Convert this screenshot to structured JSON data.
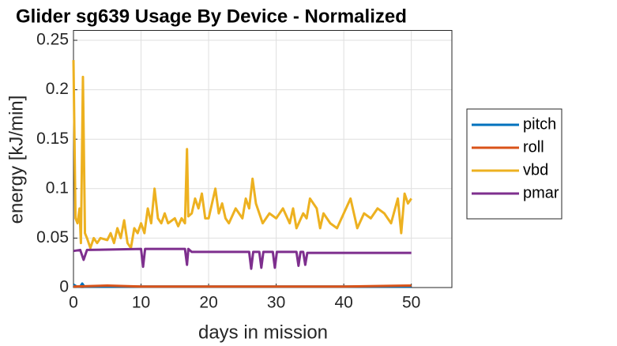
{
  "chart_data": {
    "type": "line",
    "title": "Glider sg639 Usage By Device - Normalized",
    "x_label": "days in mission",
    "y_label": "energy [kJ/min]",
    "xlim": [
      0,
      56
    ],
    "xticks": [
      0,
      10,
      20,
      30,
      40,
      50
    ],
    "ylim": [
      0,
      0.26
    ],
    "yticks": [
      0,
      0.05,
      0.1,
      0.15,
      0.2,
      0.25
    ],
    "grid": true,
    "legend": "outside-right",
    "series": [
      {
        "name": "pitch",
        "color": "#0072BD",
        "x": [
          0,
          0.5,
          1,
          1.3,
          1.6,
          50
        ],
        "values": [
          0.003,
          0.001,
          0.001,
          0.004,
          0.001,
          0.001
        ]
      },
      {
        "name": "roll",
        "color": "#D95319",
        "x": [
          0,
          5,
          10,
          20,
          30,
          40,
          50
        ],
        "values": [
          0.001,
          0.002,
          0.001,
          0.001,
          0.001,
          0.001,
          0.002
        ]
      },
      {
        "name": "vbd",
        "color": "#EDB120",
        "x": [
          0,
          0.3,
          0.6,
          0.9,
          1.1,
          1.4,
          1.7,
          2,
          2.5,
          3,
          3.5,
          4,
          5,
          5.5,
          6,
          6.5,
          7,
          7.5,
          8,
          8.5,
          9,
          9.5,
          10,
          10.5,
          11,
          11.5,
          12,
          12.5,
          13,
          13.5,
          14,
          15,
          15.5,
          16,
          16.5,
          16.8,
          17,
          17.5,
          18,
          18.5,
          19,
          19.5,
          20,
          21,
          21.5,
          22,
          22.5,
          23,
          24,
          25,
          25.5,
          26,
          26.5,
          27,
          27.5,
          28,
          29,
          30,
          31,
          32,
          32.5,
          33,
          34,
          34.5,
          35,
          36,
          36.5,
          37,
          38,
          39,
          40,
          41,
          42,
          43,
          44,
          45,
          46,
          47,
          48,
          48.5,
          49,
          49.5,
          50
        ],
        "values": [
          0.23,
          0.07,
          0.065,
          0.08,
          0.045,
          0.213,
          0.055,
          0.05,
          0.04,
          0.05,
          0.045,
          0.05,
          0.048,
          0.055,
          0.045,
          0.06,
          0.05,
          0.068,
          0.045,
          0.04,
          0.06,
          0.055,
          0.065,
          0.055,
          0.08,
          0.065,
          0.1,
          0.07,
          0.065,
          0.075,
          0.065,
          0.07,
          0.062,
          0.07,
          0.065,
          0.14,
          0.072,
          0.075,
          0.09,
          0.08,
          0.095,
          0.07,
          0.07,
          0.1,
          0.075,
          0.085,
          0.07,
          0.065,
          0.08,
          0.07,
          0.09,
          0.08,
          0.11,
          0.085,
          0.075,
          0.065,
          0.075,
          0.07,
          0.08,
          0.065,
          0.08,
          0.06,
          0.075,
          0.07,
          0.09,
          0.08,
          0.06,
          0.075,
          0.065,
          0.06,
          0.075,
          0.09,
          0.06,
          0.075,
          0.07,
          0.08,
          0.075,
          0.065,
          0.09,
          0.055,
          0.095,
          0.085,
          0.09
        ]
      },
      {
        "name": "pmar",
        "color": "#7E2F8E",
        "x": [
          0,
          1,
          1.5,
          2,
          10,
          10.3,
          10.6,
          16.5,
          16.8,
          17,
          17.5,
          26,
          26.3,
          26.6,
          27.5,
          27.8,
          28.1,
          29.5,
          29.8,
          30.1,
          33,
          33.3,
          33.6,
          34,
          34.3,
          34.6,
          50
        ],
        "values": [
          0.037,
          0.038,
          0.028,
          0.038,
          0.039,
          0.021,
          0.039,
          0.039,
          0.023,
          0.039,
          0.036,
          0.036,
          0.019,
          0.036,
          0.036,
          0.02,
          0.036,
          0.036,
          0.02,
          0.036,
          0.036,
          0.022,
          0.036,
          0.036,
          0.023,
          0.035,
          0.035
        ]
      }
    ]
  }
}
